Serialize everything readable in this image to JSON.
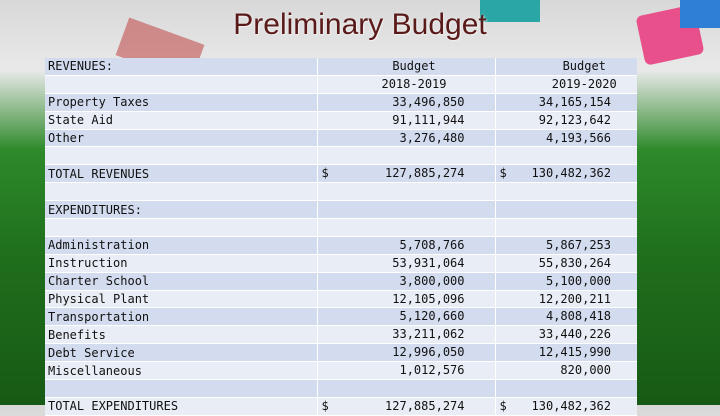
{
  "title": "Preliminary Budget",
  "table": {
    "revenues_label": "REVENUES:",
    "col1": [
      "Budget",
      "2018-2019"
    ],
    "col2": [
      "Budget",
      "2019-2020"
    ],
    "revenues": [
      {
        "label": "Property Taxes",
        "b1": "33,496,850",
        "b2": "34,165,154"
      },
      {
        "label": "State Aid",
        "b1": "91,111,944",
        "b2": "92,123,642"
      },
      {
        "label": "Other",
        "b1": "3,276,480",
        "b2": "4,193,566"
      }
    ],
    "total_revenues": {
      "label": "TOTAL REVENUES",
      "currency": "$",
      "b1": "127,885,274",
      "b2": "130,482,362"
    },
    "expenditures_label": "EXPENDITURES:",
    "expenditures": [
      {
        "label": "Administration",
        "b1": "5,708,766",
        "b2": "5,867,253"
      },
      {
        "label": "Instruction",
        "b1": "53,931,064",
        "b2": "55,830,264"
      },
      {
        "label": "Charter School",
        "b1": "3,800,000",
        "b2": "5,100,000"
      },
      {
        "label": "Physical Plant",
        "b1": "12,105,096",
        "b2": "12,200,211"
      },
      {
        "label": "Transportation",
        "b1": "5,120,660",
        "b2": "4,808,418"
      },
      {
        "label": "Benefits",
        "b1": "33,211,062",
        "b2": "33,440,226"
      },
      {
        "label": "Debt Service",
        "b1": "12,996,050",
        "b2": "12,415,990"
      },
      {
        "label": "Miscellaneous",
        "b1": "1,012,576",
        "b2": "820,000"
      }
    ],
    "total_expenditures": {
      "label": "TOTAL EXPENDITURES",
      "currency": "$",
      "b1": "127,885,274",
      "b2": "130,482,362"
    }
  }
}
